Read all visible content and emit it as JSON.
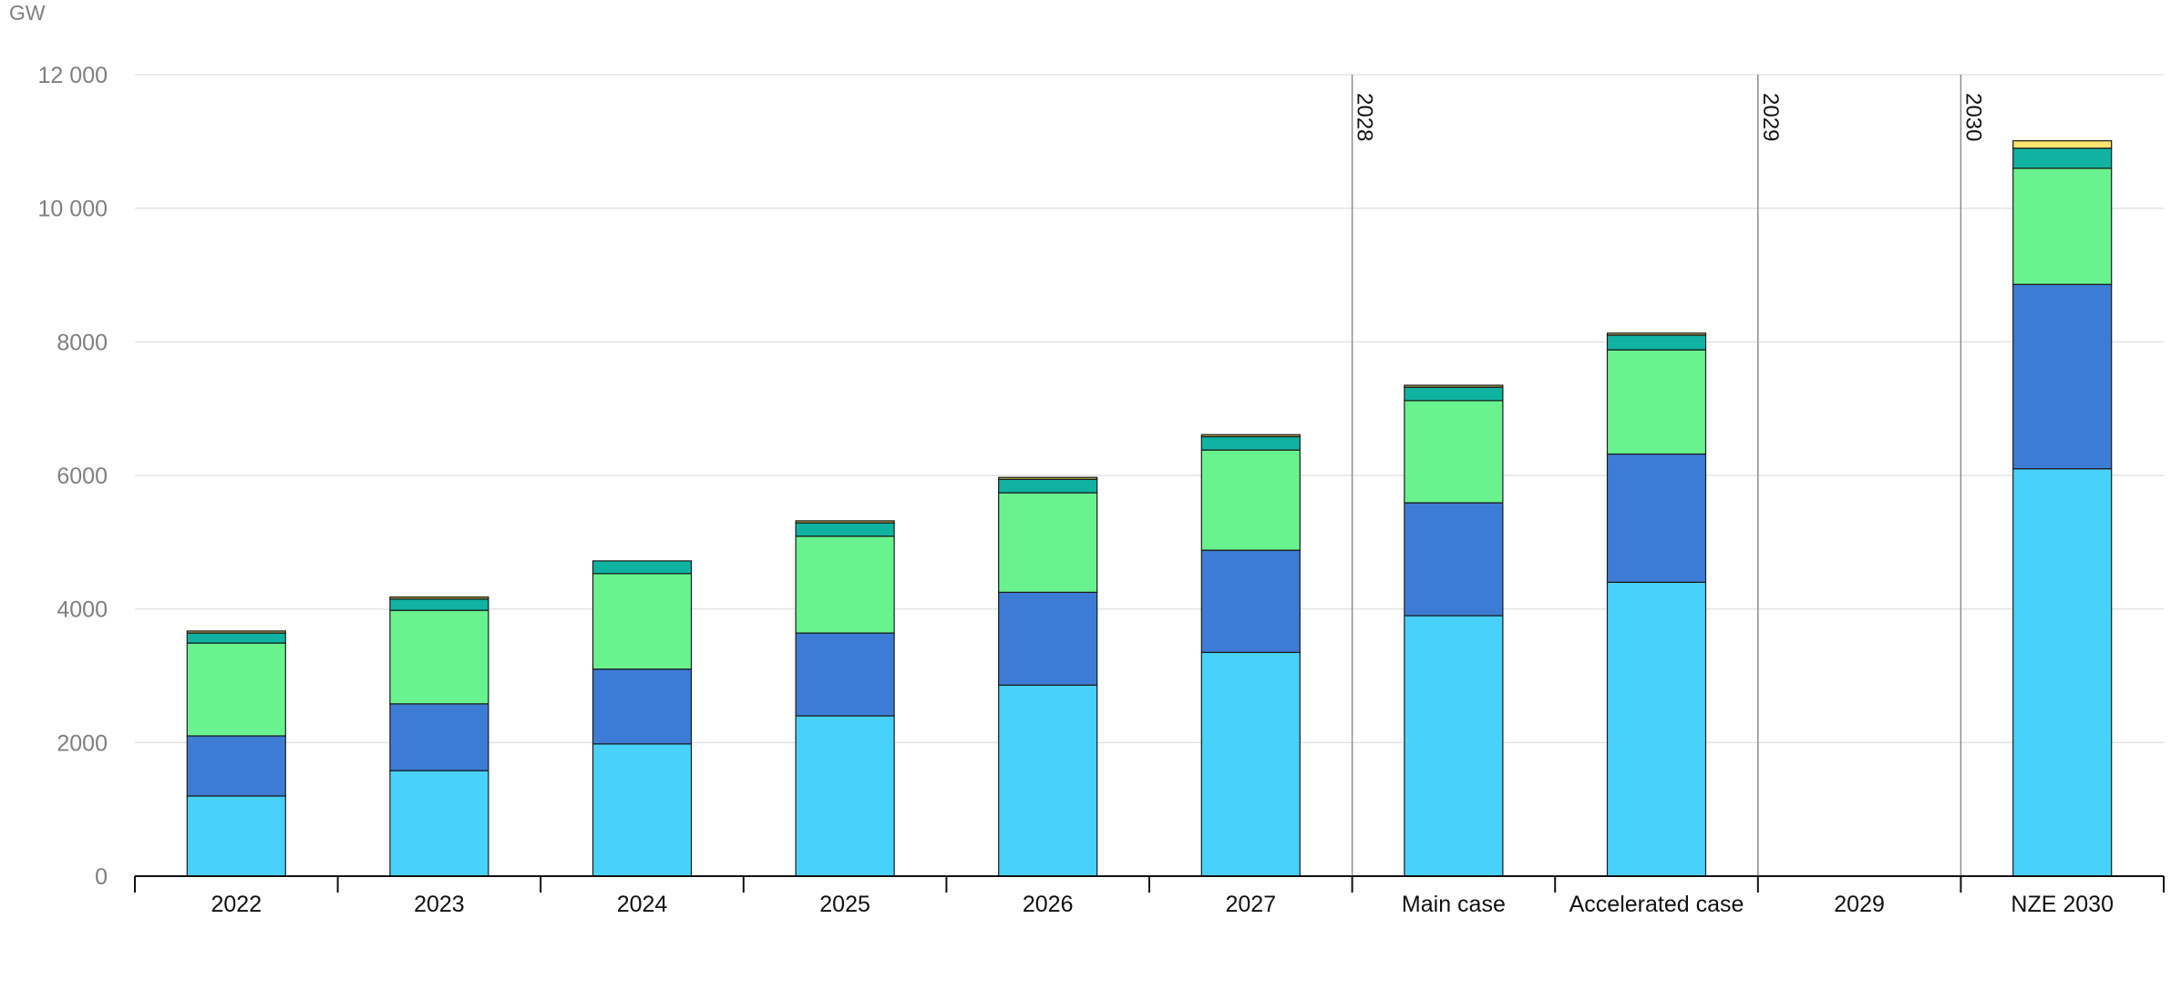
{
  "chart_data": {
    "type": "bar",
    "stacked": true,
    "ylabel": "GW",
    "ylim": [
      0,
      12000
    ],
    "yticks": [
      0,
      2000,
      4000,
      6000,
      8000,
      10000,
      12000
    ],
    "ytick_labels": [
      "0",
      "2000",
      "4000",
      "6000",
      "8000",
      "10 000",
      "12 000"
    ],
    "grid": true,
    "categories": [
      "2022",
      "2023",
      "2024",
      "2025",
      "2026",
      "2027",
      "Main case",
      "Accelerated case",
      "2029",
      "NZE 2030"
    ],
    "vertical_markers": [
      {
        "label": "2028",
        "before_category": "Main case"
      },
      {
        "label": "2029",
        "before_category": "2029"
      },
      {
        "label": "2030",
        "before_category": "NZE 2030"
      }
    ],
    "series": [
      {
        "color": "#48d1fb",
        "values": [
          1200,
          1580,
          1980,
          2400,
          2860,
          3350,
          3900,
          4400,
          null,
          6100
        ]
      },
      {
        "color": "#3d7cd5",
        "values": [
          900,
          1000,
          1120,
          1240,
          1390,
          1530,
          1690,
          1920,
          null,
          2760
        ]
      },
      {
        "color": "#69f38f",
        "values": [
          1390,
          1400,
          1430,
          1450,
          1490,
          1500,
          1530,
          1560,
          null,
          1740
        ]
      },
      {
        "color": "#10b3a1",
        "values": [
          150,
          170,
          190,
          200,
          200,
          200,
          200,
          220,
          null,
          300
        ]
      },
      {
        "color": "#b7a84a",
        "values": [
          30,
          30,
          0,
          30,
          30,
          30,
          30,
          30,
          null,
          0
        ]
      },
      {
        "color": "#fbe56d",
        "values": [
          0,
          0,
          0,
          0,
          0,
          0,
          0,
          0,
          null,
          110
        ]
      }
    ]
  }
}
